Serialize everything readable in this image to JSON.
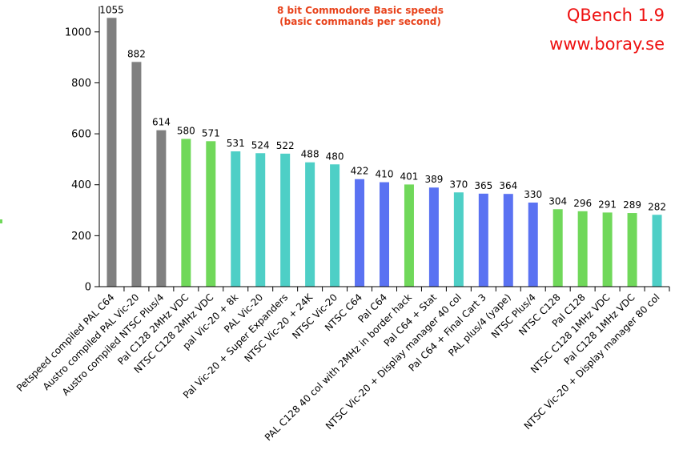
{
  "chart_data": {
    "type": "bar",
    "title": "8 bit Commodore Basic speeds",
    "subtitle": "(basic commands per second)",
    "brand": "QBench 1.9",
    "website": "www.boray.se",
    "ylim": [
      0,
      1100
    ],
    "yticks": [
      0,
      200,
      400,
      600,
      800,
      1000
    ],
    "grid": false,
    "legend": "none",
    "palette": {
      "gray": "#808080",
      "green": "#70d85a",
      "cyan": "#4ecfc6",
      "blue": "#5a72f2"
    },
    "categories": [
      "Petspeed compiled PAL C64",
      "Austro compiled PAL Vic-20",
      "Austro compiled NTSC Plus/4",
      "Pal C128 2MHz VDC",
      "NTSC C128 2MHz VDC",
      "pal Vic-20 + 8k",
      "PAL Vic-20",
      "Pal Vic-20 + Super Expanders",
      "NTSC Vic-20 + 24K",
      "NTSC Vic-20",
      "NTSC C64",
      "Pal C64",
      "PAL C128 40 col with 2MHz in border hack",
      "Pal C64 + Stat",
      "NTSC Vic-20 + Display manager 40 col",
      "Pal C64 + Final Cart 3",
      "PAL plus/4 (yape)",
      "NTSC Plus/4",
      "NTSC C128",
      "Pal C128",
      "NTSC C128 1MHz VDC",
      "Pal C128 1MHz VDC",
      "NTSC Vic-20 + Display manager 80 col"
    ],
    "values": [
      1055,
      882,
      614,
      580,
      571,
      531,
      524,
      522,
      488,
      480,
      422,
      410,
      401,
      389,
      370,
      365,
      364,
      330,
      304,
      296,
      291,
      289,
      282
    ],
    "value_labels": [
      "1055",
      "882",
      "614",
      "580",
      "571",
      "531",
      "524",
      "522",
      "488",
      "480",
      "422",
      "410",
      "401",
      "389",
      "370",
      "365",
      "364",
      "330",
      "304",
      "296",
      "291",
      "289",
      "282"
    ],
    "bar_colors": [
      "gray",
      "gray",
      "gray",
      "green",
      "green",
      "cyan",
      "cyan",
      "cyan",
      "cyan",
      "cyan",
      "blue",
      "blue",
      "green",
      "blue",
      "cyan",
      "blue",
      "blue",
      "blue",
      "green",
      "green",
      "green",
      "green",
      "cyan"
    ]
  }
}
